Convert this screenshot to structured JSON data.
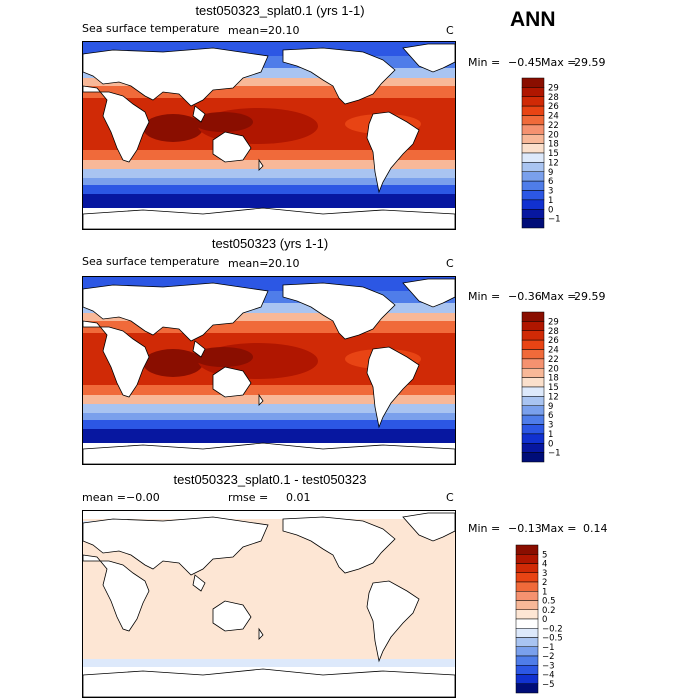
{
  "season": "ANN",
  "panels": [
    {
      "title": "test050323_splat0.1 (yrs 1-1)",
      "variable": "Sea surface temperature",
      "stat_label": "mean=",
      "stat_value": "20.10",
      "units": "C",
      "min_label": "Min =",
      "min_value": "−0.45",
      "max_label": "Max =",
      "max_value": "29.59",
      "colorbar_levels": [
        "29",
        "28",
        "26",
        "24",
        "22",
        "20",
        "18",
        "15",
        "12",
        "9",
        "6",
        "3",
        "1",
        "0",
        "−1"
      ],
      "colorbar_colors": [
        "#8a0e00",
        "#b01600",
        "#d02a06",
        "#e84414",
        "#f06a3a",
        "#f59270",
        "#f8b898",
        "#fbe0cc",
        "#dde9fb",
        "#a9c4f1",
        "#7aa0ec",
        "#4f7de9",
        "#2c57e4",
        "#1131d0",
        "#0717a0",
        "#000d78"
      ]
    },
    {
      "title": "test050323 (yrs 1-1)",
      "variable": "Sea surface temperature",
      "stat_label": "mean=",
      "stat_value": "20.10",
      "units": "C",
      "min_label": "Min =",
      "min_value": "−0.36",
      "max_label": "Max =",
      "max_value": "29.59",
      "colorbar_levels": [
        "29",
        "28",
        "26",
        "24",
        "22",
        "20",
        "18",
        "15",
        "12",
        "9",
        "6",
        "3",
        "1",
        "0",
        "−1"
      ],
      "colorbar_colors": [
        "#8a0e00",
        "#b01600",
        "#d02a06",
        "#e84414",
        "#f06a3a",
        "#f59270",
        "#f8b898",
        "#fbe0cc",
        "#dde9fb",
        "#a9c4f1",
        "#7aa0ec",
        "#4f7de9",
        "#2c57e4",
        "#1131d0",
        "#0717a0",
        "#000d78"
      ]
    },
    {
      "title": "test050323_splat0.1 - test050323",
      "mean_label": "mean =",
      "mean_value": "−0.00",
      "rmse_label": "rmse =",
      "rmse_value": "0.01",
      "units": "C",
      "min_label": "Min =",
      "min_value": "−0.13",
      "max_label": "Max =",
      "max_value": "0.14",
      "colorbar_levels": [
        "5",
        "4",
        "3",
        "2",
        "1",
        "0.5",
        "0.2",
        "0",
        "−0.2",
        "−0.5",
        "−1",
        "−2",
        "−3",
        "−4",
        "−5"
      ],
      "colorbar_colors": [
        "#8a0e00",
        "#b01600",
        "#d02a06",
        "#e84414",
        "#f06a3a",
        "#f59270",
        "#f8b898",
        "#fde6d4",
        "#ffffff",
        "#dde9fb",
        "#a9c4f1",
        "#7aa0ec",
        "#4f7de9",
        "#2c57e4",
        "#1131d0",
        "#000d78"
      ]
    }
  ]
}
